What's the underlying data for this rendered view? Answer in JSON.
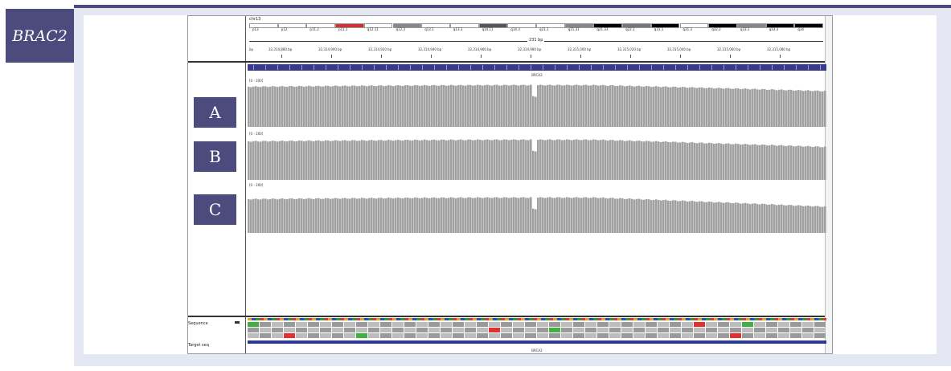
{
  "gene": "BRAC2",
  "chromosome": "chr13",
  "bands": [
    "p13",
    "p12",
    "p11.2",
    "p11.1",
    "q12.11",
    "q12.3",
    "q13.1",
    "q13.3",
    "q14.11",
    "q14.3",
    "q21.1",
    "q21.31",
    "q21.33",
    "q22.1",
    "q31.1",
    "q31.3",
    "q32.2",
    "q33.1",
    "q33.3",
    "q34"
  ],
  "scale_label": "231 bp",
  "ticks": [
    "32,314,880 bp",
    "32,314,900 bp",
    "32,314,920 bp",
    "32,314,940 bp",
    "32,314,960 bp",
    "32,314,980 bp",
    "32,315,000 bp",
    "32,315,020 bp",
    "32,315,040 bp",
    "32,315,060 bp",
    "32,315,080 bp"
  ],
  "ruler_start": "bp",
  "gene_track_label": "BRCA2",
  "samples": [
    {
      "label": "A",
      "range": "[0 - 200]"
    },
    {
      "label": "B",
      "range": "[0 - 200]"
    },
    {
      "label": "C",
      "range": "[0 - 200]"
    }
  ],
  "sequence_label": "Sequence",
  "target_label": "Target seq",
  "target_gene": "BRCA2",
  "colors": {
    "accent": "#4b4b7e",
    "coverage": "#a0a0a0",
    "gene": "#2b3a8f"
  }
}
